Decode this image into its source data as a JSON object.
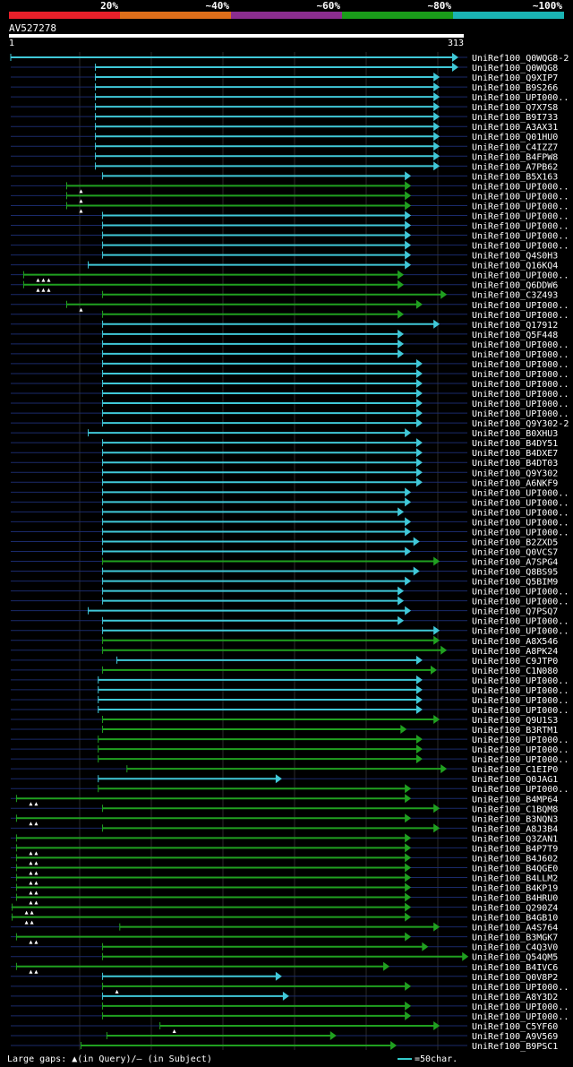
{
  "legend": {
    "segments": [
      {
        "label": "20%",
        "color": "#e8202a"
      },
      {
        "label": "~40%",
        "color": "#e06f1a"
      },
      {
        "label": "~60%",
        "color": "#8b2d8f"
      },
      {
        "label": "~80%",
        "color": "#1a9c1a"
      },
      {
        "label": "~100%",
        "color": "#1ab4b4"
      }
    ]
  },
  "query": {
    "id": "AV527278",
    "start": "1",
    "end": "313"
  },
  "footer": {
    "gaps_label": "Large gaps:",
    "gaps_query": "(in Query)/",
    "gaps_subject": "(in Subject)",
    "scale_label": "=50char."
  },
  "colors": {
    "cyan": "#40c8d8",
    "green": "#20a020",
    "navy": "#1a2a6a",
    "text": "#ffffff"
  },
  "chart_data": {
    "type": "bar",
    "title": "AV527278",
    "x_range": [
      1,
      313
    ],
    "rows": [
      {
        "name": "UniRef100_Q0WQG8-2",
        "start": 1,
        "end": 313,
        "color": "cyan",
        "gaps": 0
      },
      {
        "name": "UniRef100_Q0WQG8",
        "start": 60,
        "end": 313,
        "color": "cyan",
        "gaps": 0
      },
      {
        "name": "UniRef100_Q9XIP7",
        "start": 60,
        "end": 300,
        "color": "cyan",
        "gaps": 0
      },
      {
        "name": "UniRef100_B9S266",
        "start": 60,
        "end": 300,
        "color": "cyan",
        "gaps": 0
      },
      {
        "name": "UniRef100_UPI000..",
        "start": 60,
        "end": 300,
        "color": "cyan",
        "gaps": 0
      },
      {
        "name": "UniRef100_Q7X7S8",
        "start": 60,
        "end": 300,
        "color": "cyan",
        "gaps": 0
      },
      {
        "name": "UniRef100_B9I733",
        "start": 60,
        "end": 300,
        "color": "cyan",
        "gaps": 0
      },
      {
        "name": "UniRef100_A3AX31",
        "start": 60,
        "end": 300,
        "color": "cyan",
        "gaps": 0
      },
      {
        "name": "UniRef100_Q01HU0",
        "start": 60,
        "end": 300,
        "color": "cyan",
        "gaps": 0
      },
      {
        "name": "UniRef100_C4IZZ7",
        "start": 60,
        "end": 300,
        "color": "cyan",
        "gaps": 0
      },
      {
        "name": "UniRef100_B4FPW8",
        "start": 60,
        "end": 300,
        "color": "cyan",
        "gaps": 0
      },
      {
        "name": "UniRef100_A7PB62",
        "start": 60,
        "end": 300,
        "color": "cyan",
        "gaps": 0
      },
      {
        "name": "UniRef100_B5X163",
        "start": 65,
        "end": 280,
        "color": "cyan",
        "gaps": 0
      },
      {
        "name": "UniRef100_UPI000..",
        "start": 40,
        "end": 280,
        "color": "green",
        "gaps": 1
      },
      {
        "name": "UniRef100_UPI000..",
        "start": 40,
        "end": 280,
        "color": "green",
        "gaps": 1
      },
      {
        "name": "UniRef100_UPI000..",
        "start": 40,
        "end": 280,
        "color": "green",
        "gaps": 1
      },
      {
        "name": "UniRef100_UPI000..",
        "start": 65,
        "end": 280,
        "color": "cyan",
        "gaps": 0
      },
      {
        "name": "UniRef100_UPI000..",
        "start": 65,
        "end": 280,
        "color": "cyan",
        "gaps": 0
      },
      {
        "name": "UniRef100_UPI000..",
        "start": 65,
        "end": 280,
        "color": "cyan",
        "gaps": 0
      },
      {
        "name": "UniRef100_UPI000..",
        "start": 65,
        "end": 280,
        "color": "cyan",
        "gaps": 0
      },
      {
        "name": "UniRef100_Q4S0H3",
        "start": 65,
        "end": 280,
        "color": "cyan",
        "gaps": 0
      },
      {
        "name": "UniRef100_Q16KQ4",
        "start": 55,
        "end": 280,
        "color": "cyan",
        "gaps": 0
      },
      {
        "name": "UniRef100_UPI000..",
        "start": 10,
        "end": 275,
        "color": "green",
        "gaps": 3
      },
      {
        "name": "UniRef100_Q6DDW6",
        "start": 10,
        "end": 275,
        "color": "green",
        "gaps": 3
      },
      {
        "name": "UniRef100_C3Z493",
        "start": 65,
        "end": 305,
        "color": "green",
        "gaps": 0
      },
      {
        "name": "UniRef100_UPI000..",
        "start": 40,
        "end": 288,
        "color": "green",
        "gaps": 1
      },
      {
        "name": "UniRef100_UPI000..",
        "start": 65,
        "end": 275,
        "color": "green",
        "gaps": 0
      },
      {
        "name": "UniRef100_Q17912",
        "start": 65,
        "end": 300,
        "color": "cyan",
        "gaps": 0
      },
      {
        "name": "UniRef100_Q5F448",
        "start": 65,
        "end": 275,
        "color": "cyan",
        "gaps": 0
      },
      {
        "name": "UniRef100_UPI000..",
        "start": 65,
        "end": 275,
        "color": "cyan",
        "gaps": 0
      },
      {
        "name": "UniRef100_UPI000..",
        "start": 65,
        "end": 275,
        "color": "cyan",
        "gaps": 0
      },
      {
        "name": "UniRef100_UPI000..",
        "start": 65,
        "end": 288,
        "color": "cyan",
        "gaps": 0
      },
      {
        "name": "UniRef100_UPI000..",
        "start": 65,
        "end": 288,
        "color": "cyan",
        "gaps": 0
      },
      {
        "name": "UniRef100_UPI000..",
        "start": 65,
        "end": 288,
        "color": "cyan",
        "gaps": 0
      },
      {
        "name": "UniRef100_UPI000..",
        "start": 65,
        "end": 288,
        "color": "cyan",
        "gaps": 0
      },
      {
        "name": "UniRef100_UPI000..",
        "start": 65,
        "end": 288,
        "color": "cyan",
        "gaps": 0
      },
      {
        "name": "UniRef100_UPI000..",
        "start": 65,
        "end": 288,
        "color": "cyan",
        "gaps": 0
      },
      {
        "name": "UniRef100_Q9Y302-2",
        "start": 65,
        "end": 288,
        "color": "cyan",
        "gaps": 0
      },
      {
        "name": "UniRef100_B0XHU3",
        "start": 55,
        "end": 280,
        "color": "cyan",
        "gaps": 0
      },
      {
        "name": "UniRef100_B4DY51",
        "start": 65,
        "end": 288,
        "color": "cyan",
        "gaps": 0
      },
      {
        "name": "UniRef100_B4DXE7",
        "start": 65,
        "end": 288,
        "color": "cyan",
        "gaps": 0
      },
      {
        "name": "UniRef100_B4DT03",
        "start": 65,
        "end": 288,
        "color": "cyan",
        "gaps": 0
      },
      {
        "name": "UniRef100_Q9Y302",
        "start": 65,
        "end": 288,
        "color": "cyan",
        "gaps": 0
      },
      {
        "name": "UniRef100_A6NKF9",
        "start": 65,
        "end": 288,
        "color": "cyan",
        "gaps": 0
      },
      {
        "name": "UniRef100_UPI000..",
        "start": 65,
        "end": 280,
        "color": "cyan",
        "gaps": 0
      },
      {
        "name": "UniRef100_UPI000..",
        "start": 65,
        "end": 280,
        "color": "cyan",
        "gaps": 0
      },
      {
        "name": "UniRef100_UPI000..",
        "start": 65,
        "end": 275,
        "color": "cyan",
        "gaps": 0
      },
      {
        "name": "UniRef100_UPI000..",
        "start": 65,
        "end": 280,
        "color": "cyan",
        "gaps": 0
      },
      {
        "name": "UniRef100_UPI000..",
        "start": 65,
        "end": 280,
        "color": "cyan",
        "gaps": 0
      },
      {
        "name": "UniRef100_B2ZXD5",
        "start": 65,
        "end": 286,
        "color": "cyan",
        "gaps": 0
      },
      {
        "name": "UniRef100_Q0VCS7",
        "start": 65,
        "end": 280,
        "color": "cyan",
        "gaps": 0
      },
      {
        "name": "UniRef100_A7SPG4",
        "start": 65,
        "end": 300,
        "color": "green",
        "gaps": 0
      },
      {
        "name": "UniRef100_Q8BS95",
        "start": 65,
        "end": 286,
        "color": "cyan",
        "gaps": 0
      },
      {
        "name": "UniRef100_Q5BIM9",
        "start": 65,
        "end": 280,
        "color": "cyan",
        "gaps": 0
      },
      {
        "name": "UniRef100_UPI000..",
        "start": 65,
        "end": 275,
        "color": "cyan",
        "gaps": 0
      },
      {
        "name": "UniRef100_UPI000..",
        "start": 65,
        "end": 275,
        "color": "cyan",
        "gaps": 0
      },
      {
        "name": "UniRef100_Q7PSQ7",
        "start": 55,
        "end": 280,
        "color": "cyan",
        "gaps": 0
      },
      {
        "name": "UniRef100_UPI000..",
        "start": 65,
        "end": 275,
        "color": "cyan",
        "gaps": 0
      },
      {
        "name": "UniRef100_UPI000..",
        "start": 65,
        "end": 300,
        "color": "cyan",
        "gaps": 0
      },
      {
        "name": "UniRef100_A8X546",
        "start": 65,
        "end": 300,
        "color": "green",
        "gaps": 0
      },
      {
        "name": "UniRef100_A8PK24",
        "start": 65,
        "end": 305,
        "color": "green",
        "gaps": 0
      },
      {
        "name": "UniRef100_C9JTP0",
        "start": 75,
        "end": 288,
        "color": "cyan",
        "gaps": 0
      },
      {
        "name": "UniRef100_C1N080",
        "start": 65,
        "end": 298,
        "color": "green",
        "gaps": 0
      },
      {
        "name": "UniRef100_UPI000..",
        "start": 62,
        "end": 288,
        "color": "cyan",
        "gaps": 0
      },
      {
        "name": "UniRef100_UPI000..",
        "start": 62,
        "end": 288,
        "color": "cyan",
        "gaps": 0
      },
      {
        "name": "UniRef100_UPI000..",
        "start": 62,
        "end": 288,
        "color": "cyan",
        "gaps": 0
      },
      {
        "name": "UniRef100_UPI000..",
        "start": 62,
        "end": 288,
        "color": "cyan",
        "gaps": 0
      },
      {
        "name": "UniRef100_Q9U1S3",
        "start": 65,
        "end": 300,
        "color": "green",
        "gaps": 0
      },
      {
        "name": "UniRef100_B3RTM1",
        "start": 65,
        "end": 277,
        "color": "green",
        "gaps": 0
      },
      {
        "name": "UniRef100_UPI000..",
        "start": 62,
        "end": 288,
        "color": "green",
        "gaps": 0
      },
      {
        "name": "UniRef100_UPI000..",
        "start": 62,
        "end": 288,
        "color": "green",
        "gaps": 0
      },
      {
        "name": "UniRef100_UPI000..",
        "start": 62,
        "end": 288,
        "color": "green",
        "gaps": 0
      },
      {
        "name": "UniRef100_C1EIP0",
        "start": 82,
        "end": 305,
        "color": "green",
        "gaps": 0
      },
      {
        "name": "UniRef100_Q0JAG1",
        "start": 62,
        "end": 190,
        "color": "cyan",
        "gaps": 0
      },
      {
        "name": "UniRef100_UPI000..",
        "start": 62,
        "end": 280,
        "color": "green",
        "gaps": 0
      },
      {
        "name": "UniRef100_B4MP64",
        "start": 5,
        "end": 280,
        "color": "green",
        "gaps": 2
      },
      {
        "name": "UniRef100_C1BQM8",
        "start": 65,
        "end": 300,
        "color": "green",
        "gaps": 0
      },
      {
        "name": "UniRef100_B3NQN3",
        "start": 5,
        "end": 280,
        "color": "green",
        "gaps": 2
      },
      {
        "name": "UniRef100_A8J3B4",
        "start": 65,
        "end": 300,
        "color": "green",
        "gaps": 0
      },
      {
        "name": "UniRef100_Q3ZAN1",
        "start": 5,
        "end": 280,
        "color": "green",
        "gaps": 0
      },
      {
        "name": "UniRef100_B4P7T9",
        "start": 5,
        "end": 280,
        "color": "green",
        "gaps": 2
      },
      {
        "name": "UniRef100_B4J602",
        "start": 5,
        "end": 280,
        "color": "green",
        "gaps": 2
      },
      {
        "name": "UniRef100_B4QGE0",
        "start": 5,
        "end": 280,
        "color": "green",
        "gaps": 2
      },
      {
        "name": "UniRef100_B4LLM2",
        "start": 5,
        "end": 280,
        "color": "green",
        "gaps": 2
      },
      {
        "name": "UniRef100_B4KP19",
        "start": 5,
        "end": 280,
        "color": "green",
        "gaps": 2
      },
      {
        "name": "UniRef100_B4HRU0",
        "start": 5,
        "end": 280,
        "color": "green",
        "gaps": 2
      },
      {
        "name": "UniRef100_Q290Z4",
        "start": 2,
        "end": 280,
        "color": "green",
        "gaps": 2
      },
      {
        "name": "UniRef100_B4GB10",
        "start": 2,
        "end": 280,
        "color": "green",
        "gaps": 2
      },
      {
        "name": "UniRef100_A4S764",
        "start": 77,
        "end": 300,
        "color": "green",
        "gaps": 0
      },
      {
        "name": "UniRef100_B3MGK7",
        "start": 5,
        "end": 280,
        "color": "green",
        "gaps": 2
      },
      {
        "name": "UniRef100_C4Q3V0",
        "start": 65,
        "end": 292,
        "color": "green",
        "gaps": 0
      },
      {
        "name": "UniRef100_Q54QM5",
        "start": 65,
        "end": 320,
        "color": "green",
        "gaps": 0
      },
      {
        "name": "UniRef100_B4IVC6",
        "start": 5,
        "end": 265,
        "color": "green",
        "gaps": 2
      },
      {
        "name": "UniRef100_Q0V8P2",
        "start": 65,
        "end": 190,
        "color": "cyan",
        "gaps": 0
      },
      {
        "name": "UniRef100_UPI000..",
        "start": 65,
        "end": 280,
        "color": "green",
        "gaps": 1
      },
      {
        "name": "UniRef100_A8Y3D2",
        "start": 65,
        "end": 195,
        "color": "cyan",
        "gaps": 0
      },
      {
        "name": "UniRef100_UPI000..",
        "start": 65,
        "end": 280,
        "color": "green",
        "gaps": 0
      },
      {
        "name": "UniRef100_UPI000..",
        "start": 65,
        "end": 280,
        "color": "green",
        "gaps": 0
      },
      {
        "name": "UniRef100_C5YF60",
        "start": 105,
        "end": 300,
        "color": "green",
        "gaps": 1
      },
      {
        "name": "UniRef100_A9V569",
        "start": 68,
        "end": 228,
        "color": "green",
        "gaps": 0
      },
      {
        "name": "UniRef100_B9PSC1",
        "start": 50,
        "end": 270,
        "color": "green",
        "gaps": 0
      }
    ]
  }
}
